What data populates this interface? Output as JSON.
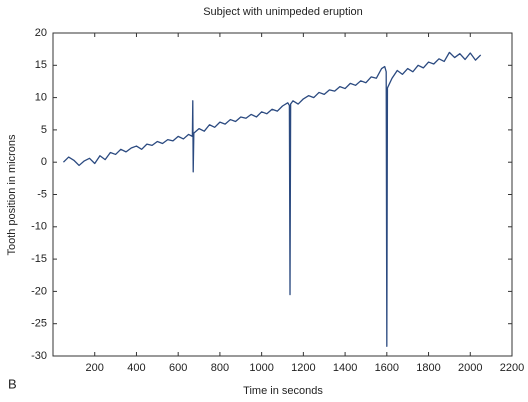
{
  "chart_data": {
    "type": "line",
    "title": "Subject with unimpeded eruption",
    "xlabel": "Time in seconds",
    "ylabel": "Tooth position in microns",
    "panel_label": "B",
    "xlim": [
      0,
      2200
    ],
    "ylim": [
      -30,
      20
    ],
    "xticks": [
      200,
      400,
      600,
      800,
      1000,
      1200,
      1400,
      1600,
      1800,
      2000,
      2200
    ],
    "yticks": [
      -30,
      -25,
      -20,
      -15,
      -10,
      -5,
      0,
      5,
      10,
      15,
      20
    ],
    "grid": false,
    "series": [
      {
        "name": "Tooth position",
        "color": "#2b4a80",
        "x": [
          50,
          75,
          100,
          125,
          150,
          175,
          200,
          225,
          250,
          275,
          300,
          325,
          350,
          375,
          400,
          425,
          450,
          475,
          500,
          525,
          550,
          575,
          600,
          625,
          650,
          668,
          670,
          672,
          675,
          700,
          725,
          750,
          775,
          800,
          825,
          850,
          875,
          900,
          925,
          950,
          975,
          1000,
          1025,
          1050,
          1075,
          1100,
          1125,
          1133,
          1136,
          1139,
          1150,
          1175,
          1200,
          1225,
          1250,
          1275,
          1300,
          1325,
          1350,
          1375,
          1400,
          1425,
          1450,
          1475,
          1500,
          1525,
          1550,
          1575,
          1590,
          1597,
          1600,
          1603,
          1625,
          1650,
          1675,
          1700,
          1725,
          1750,
          1775,
          1800,
          1825,
          1850,
          1875,
          1900,
          1925,
          1950,
          1975,
          2000,
          2025,
          2050
        ],
        "values": [
          0,
          0.8,
          0.3,
          -0.5,
          0.2,
          0.6,
          -0.2,
          1.0,
          0.4,
          1.5,
          1.2,
          2.0,
          1.6,
          2.2,
          2.5,
          2.0,
          2.8,
          2.6,
          3.2,
          2.9,
          3.5,
          3.3,
          4.0,
          3.6,
          4.3,
          4.0,
          9.5,
          -1.5,
          4.5,
          5.2,
          4.8,
          5.8,
          5.4,
          6.2,
          5.9,
          6.6,
          6.3,
          7.0,
          6.8,
          7.4,
          7.0,
          7.8,
          7.5,
          8.2,
          7.9,
          8.7,
          9.2,
          8.8,
          -20.5,
          9.0,
          9.5,
          9.0,
          9.8,
          10.3,
          10.0,
          10.8,
          10.5,
          11.2,
          11.0,
          11.7,
          11.4,
          12.2,
          11.9,
          12.6,
          12.3,
          13.2,
          13.0,
          14.5,
          14.8,
          14.0,
          -28.5,
          11.5,
          13.0,
          14.2,
          13.6,
          14.5,
          14.0,
          15.0,
          14.6,
          15.5,
          15.2,
          16.0,
          15.6,
          17.0,
          16.2,
          16.8,
          15.9,
          16.9,
          15.8,
          16.6
        ]
      }
    ]
  }
}
